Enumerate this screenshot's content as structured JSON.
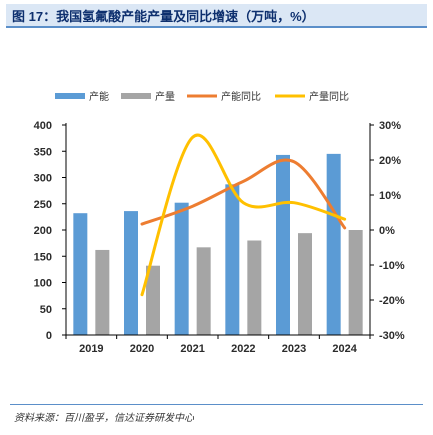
{
  "figure": {
    "title": "图 17：我国氢氟酸产能产量及同比增速（万吨，%）",
    "source": "资料来源：百川盈孚，信达证券研发中心"
  },
  "chart_data": {
    "type": "bar",
    "categories": [
      "2019",
      "2020",
      "2021",
      "2022",
      "2023",
      "2024"
    ],
    "series": [
      {
        "name": "产能",
        "kind": "bar",
        "axis": "left",
        "color": "#5b9bd5",
        "values": [
          232,
          236,
          252,
          287,
          343,
          345
        ]
      },
      {
        "name": "产量",
        "kind": "bar",
        "axis": "left",
        "color": "#a5a5a5",
        "values": [
          162,
          132,
          167,
          180,
          194,
          200
        ]
      },
      {
        "name": "产能同比",
        "kind": "line",
        "axis": "right",
        "color": "#ed7d31",
        "values": [
          null,
          1.7,
          6.8,
          13.9,
          19.5,
          0.6
        ]
      },
      {
        "name": "产量同比",
        "kind": "line",
        "axis": "right",
        "color": "#ffc000",
        "values": [
          null,
          -18.5,
          26.5,
          7.8,
          7.8,
          3.1
        ]
      }
    ],
    "y_left": {
      "min": 0,
      "max": 400,
      "step": 50,
      "ticks": [
        "0",
        "50",
        "100",
        "150",
        "200",
        "250",
        "300",
        "350",
        "400"
      ]
    },
    "y_right": {
      "min": -30,
      "max": 30,
      "step": 10,
      "ticks": [
        "-30%",
        "-20%",
        "-10%",
        "0%",
        "10%",
        "20%",
        "30%"
      ]
    },
    "legend_position": "top",
    "grid": false
  }
}
